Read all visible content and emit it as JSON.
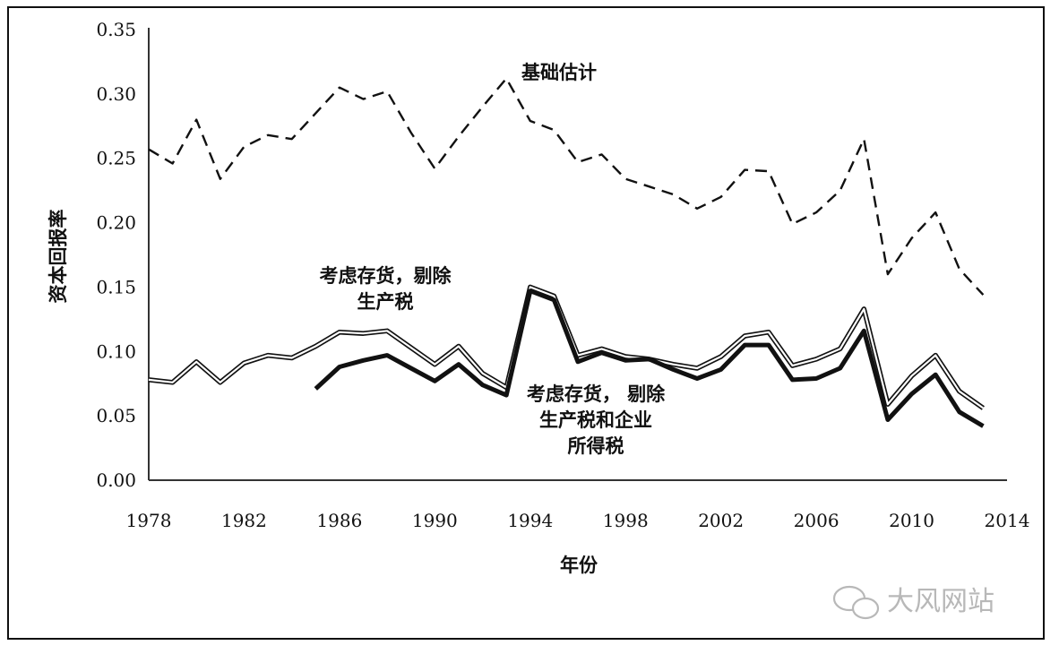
{
  "chart_data": {
    "type": "line",
    "xlabel": "年份",
    "ylabel": "资本回报率",
    "xlim": [
      1978,
      2014
    ],
    "ylim": [
      0,
      0.35
    ],
    "xticks": [
      "1978",
      "1982",
      "1986",
      "1990",
      "1994",
      "1998",
      "2002",
      "2006",
      "2010",
      "2014"
    ],
    "yticks": [
      "0.00",
      "0.05",
      "0.10",
      "0.15",
      "0.20",
      "0.25",
      "0.30",
      "0.35"
    ],
    "series": [
      {
        "name": "基础估计",
        "style": "dashed",
        "x": [
          1978,
          1979,
          1980,
          1981,
          1982,
          1983,
          1984,
          1985,
          1986,
          1987,
          1988,
          1989,
          1990,
          1991,
          1992,
          1993,
          1994,
          1995,
          1996,
          1997,
          1998,
          1999,
          2000,
          2001,
          2002,
          2003,
          2004,
          2005,
          2006,
          2007,
          2008,
          2009,
          2010,
          2011,
          2012,
          2013
        ],
        "values": [
          0.257,
          0.246,
          0.28,
          0.234,
          0.259,
          0.268,
          0.265,
          0.285,
          0.305,
          0.296,
          0.302,
          0.27,
          0.242,
          0.267,
          0.29,
          0.312,
          0.279,
          0.272,
          0.247,
          0.253,
          0.234,
          0.228,
          0.222,
          0.211,
          0.22,
          0.241,
          0.24,
          0.199,
          0.208,
          0.225,
          0.265,
          0.16,
          0.188,
          0.208,
          0.164,
          0.144
        ]
      },
      {
        "name": "考虑存货，剔除生产税",
        "style": "double",
        "x": [
          1978,
          1979,
          1980,
          1981,
          1982,
          1983,
          1984,
          1985,
          1986,
          1987,
          1988,
          1989,
          1990,
          1991,
          1992,
          1993,
          1994,
          1995,
          1996,
          1997,
          1998,
          1999,
          2000,
          2001,
          2002,
          2003,
          2004,
          2005,
          2006,
          2007,
          2008,
          2009,
          2010,
          2011,
          2012,
          2013
        ],
        "values": [
          0.078,
          0.076,
          0.092,
          0.076,
          0.091,
          0.097,
          0.095,
          0.104,
          0.115,
          0.114,
          0.116,
          0.103,
          0.09,
          0.104,
          0.083,
          0.072,
          0.15,
          0.143,
          0.097,
          0.102,
          0.096,
          0.094,
          0.09,
          0.087,
          0.096,
          0.112,
          0.115,
          0.089,
          0.094,
          0.102,
          0.133,
          0.059,
          0.081,
          0.097,
          0.069,
          0.056
        ]
      },
      {
        "name": "考虑存货，剔除生产税和企业所得税",
        "style": "thick",
        "x": [
          1985,
          1986,
          1987,
          1988,
          1989,
          1990,
          1991,
          1992,
          1993,
          1994,
          1995,
          1996,
          1997,
          1998,
          1999,
          2000,
          2001,
          2002,
          2003,
          2004,
          2005,
          2006,
          2007,
          2008,
          2009,
          2010,
          2011,
          2012,
          2013
        ],
        "values": [
          0.071,
          0.088,
          0.093,
          0.097,
          0.087,
          0.077,
          0.09,
          0.074,
          0.066,
          0.147,
          0.14,
          0.092,
          0.099,
          0.093,
          0.094,
          0.086,
          0.079,
          0.086,
          0.105,
          0.105,
          0.078,
          0.079,
          0.087,
          0.116,
          0.047,
          0.067,
          0.082,
          0.053,
          0.042
        ]
      }
    ],
    "annotations": [
      {
        "lines": [
          "基础估计"
        ]
      },
      {
        "lines": [
          "考虑存货，剔除",
          "生产税"
        ]
      },
      {
        "lines": [
          "考虑存货， 剔除",
          "生产税和企业",
          "所得税"
        ]
      }
    ],
    "watermark": "大风网站",
    "grid": false
  }
}
